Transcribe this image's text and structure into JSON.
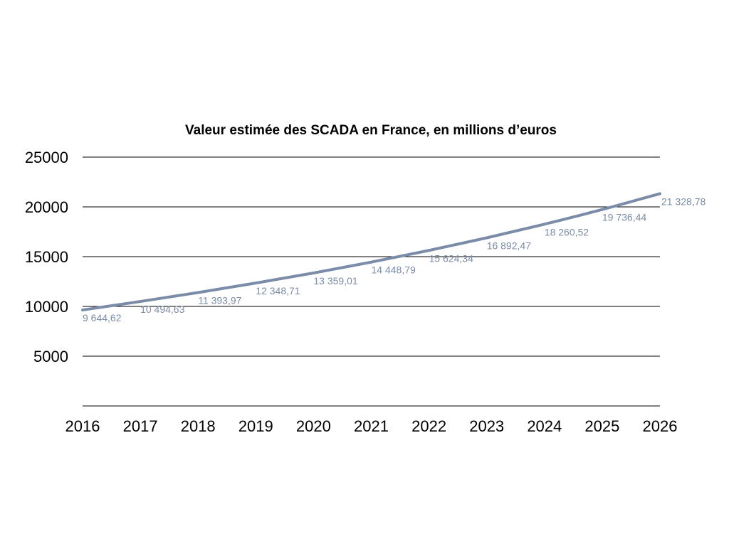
{
  "chart_data": {
    "type": "line",
    "title": "Valeur estimée des SCADA en France, en millions d’euros",
    "xlabel": "",
    "ylabel": "",
    "x": [
      "2016",
      "2017",
      "2018",
      "2019",
      "2020",
      "2021",
      "2022",
      "2023",
      "2024",
      "2025",
      "2026"
    ],
    "ylim": [
      0,
      25000
    ],
    "yticks": [
      "5000",
      "10000",
      "15000",
      "20000",
      "25000"
    ],
    "grid": true,
    "legend": "none",
    "series": [
      {
        "color": "#7b8ca8",
        "values": [
          9644.62,
          10494.63,
          11393.97,
          12348.71,
          13359.01,
          14448.79,
          15624.34,
          16892.47,
          18260.52,
          19736.44,
          21328.78
        ],
        "labels": [
          "9 644,62",
          "10 494,63",
          "11 393,97",
          "12 348,71",
          "13 359,01",
          "14 448,79",
          "15 624,34",
          "16 892,47",
          "18 260,52",
          "19 736,44",
          "21 328,78"
        ]
      }
    ]
  }
}
